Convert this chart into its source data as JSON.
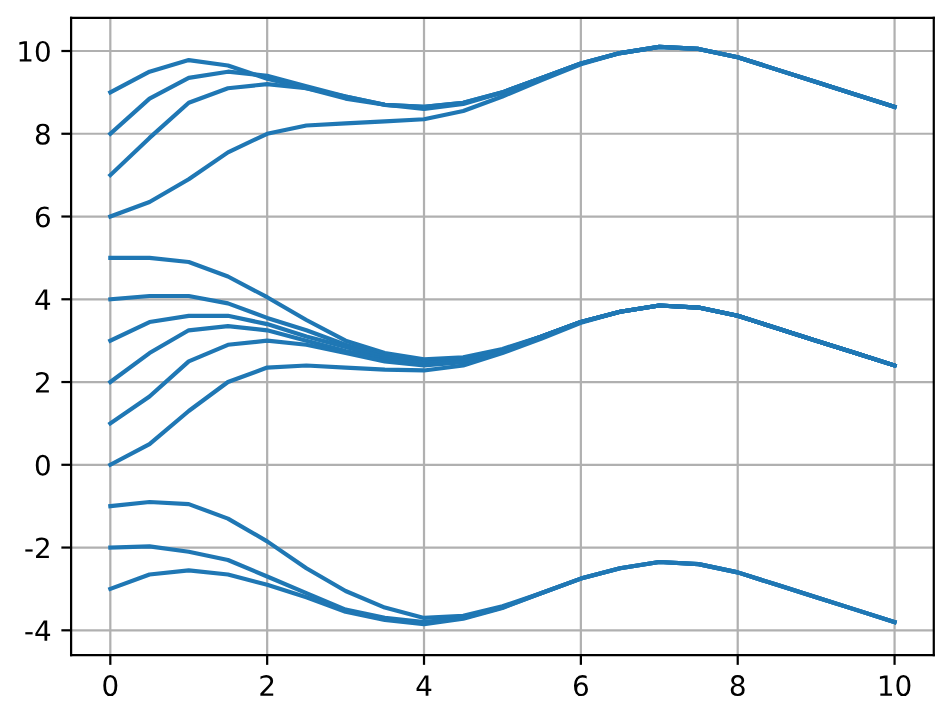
{
  "chart_data": {
    "type": "line",
    "x": [
      0,
      0.5,
      1,
      1.5,
      2,
      2.5,
      3,
      3.5,
      4,
      4.5,
      5,
      5.5,
      6,
      6.5,
      7,
      7.5,
      8,
      8.5,
      9,
      9.5,
      10
    ],
    "series": [
      {
        "color": "#1f77b4",
        "values": [
          9,
          9.5,
          9.78,
          9.65,
          9.33,
          9.1,
          8.85,
          8.7,
          8.65,
          8.75,
          9.0,
          9.35,
          9.7,
          9.95,
          10.1,
          10.05,
          9.85,
          9.55,
          9.25,
          8.95,
          8.65
        ]
      },
      {
        "color": "#1f77b4",
        "values": [
          8,
          8.85,
          9.35,
          9.5,
          9.4,
          9.15,
          8.9,
          8.7,
          8.65,
          8.75,
          9.0,
          9.35,
          9.7,
          9.95,
          10.1,
          10.05,
          9.85,
          9.55,
          9.25,
          8.95,
          8.65
        ]
      },
      {
        "color": "#1f77b4",
        "values": [
          7,
          7.9,
          8.75,
          9.1,
          9.2,
          9.1,
          8.9,
          8.7,
          8.6,
          8.72,
          9.0,
          9.35,
          9.7,
          9.95,
          10.1,
          10.05,
          9.85,
          9.55,
          9.25,
          8.95,
          8.65
        ]
      },
      {
        "color": "#1f77b4",
        "values": [
          6,
          6.35,
          6.9,
          7.55,
          8.0,
          8.2,
          8.25,
          8.3,
          8.35,
          8.55,
          8.9,
          9.3,
          9.68,
          9.95,
          10.1,
          10.05,
          9.85,
          9.55,
          9.25,
          8.95,
          8.65
        ]
      },
      {
        "color": "#1f77b4",
        "values": [
          5,
          5,
          4.9,
          4.55,
          4.05,
          3.5,
          3.0,
          2.7,
          2.55,
          2.6,
          2.8,
          3.1,
          3.45,
          3.7,
          3.85,
          3.8,
          3.6,
          3.3,
          3.0,
          2.7,
          2.4
        ]
      },
      {
        "color": "#1f77b4",
        "values": [
          4,
          4.08,
          4.08,
          3.9,
          3.55,
          3.25,
          2.9,
          2.65,
          2.5,
          2.55,
          2.78,
          3.1,
          3.45,
          3.7,
          3.85,
          3.8,
          3.6,
          3.3,
          3.0,
          2.7,
          2.4
        ]
      },
      {
        "color": "#1f77b4",
        "values": [
          3,
          3.45,
          3.6,
          3.6,
          3.4,
          3.1,
          2.85,
          2.6,
          2.45,
          2.52,
          2.76,
          3.1,
          3.45,
          3.7,
          3.85,
          3.8,
          3.6,
          3.3,
          3.0,
          2.7,
          2.4
        ]
      },
      {
        "color": "#1f77b4",
        "values": [
          2,
          2.7,
          3.25,
          3.35,
          3.25,
          3.0,
          2.75,
          2.55,
          2.45,
          2.5,
          2.75,
          3.1,
          3.45,
          3.7,
          3.85,
          3.8,
          3.6,
          3.3,
          3.0,
          2.7,
          2.4
        ]
      },
      {
        "color": "#1f77b4",
        "values": [
          1,
          1.65,
          2.5,
          2.9,
          3.0,
          2.9,
          2.7,
          2.5,
          2.4,
          2.48,
          2.74,
          3.1,
          3.45,
          3.7,
          3.85,
          3.8,
          3.6,
          3.3,
          3.0,
          2.7,
          2.4
        ]
      },
      {
        "color": "#1f77b4",
        "values": [
          0,
          0.5,
          1.3,
          2.0,
          2.35,
          2.4,
          2.35,
          2.3,
          2.28,
          2.4,
          2.7,
          3.05,
          3.43,
          3.7,
          3.85,
          3.8,
          3.6,
          3.3,
          3.0,
          2.7,
          2.4
        ]
      },
      {
        "color": "#1f77b4",
        "values": [
          -1,
          -0.9,
          -0.95,
          -1.3,
          -1.85,
          -2.5,
          -3.05,
          -3.45,
          -3.7,
          -3.65,
          -3.42,
          -3.1,
          -2.75,
          -2.5,
          -2.35,
          -2.4,
          -2.6,
          -2.9,
          -3.2,
          -3.5,
          -3.8
        ]
      },
      {
        "color": "#1f77b4",
        "values": [
          -2,
          -1.97,
          -2.1,
          -2.3,
          -2.7,
          -3.1,
          -3.5,
          -3.7,
          -3.8,
          -3.7,
          -3.45,
          -3.1,
          -2.75,
          -2.5,
          -2.35,
          -2.4,
          -2.6,
          -2.9,
          -3.2,
          -3.5,
          -3.8
        ]
      },
      {
        "color": "#1f77b4",
        "values": [
          -3,
          -2.65,
          -2.55,
          -2.65,
          -2.9,
          -3.2,
          -3.55,
          -3.75,
          -3.85,
          -3.72,
          -3.46,
          -3.1,
          -2.75,
          -2.5,
          -2.35,
          -2.4,
          -2.6,
          -2.9,
          -3.2,
          -3.5,
          -3.8
        ]
      }
    ],
    "xlim": [
      -0.5,
      10.5
    ],
    "ylim": [
      -4.6,
      10.8
    ],
    "xticks": [
      0,
      2,
      4,
      6,
      8,
      10
    ],
    "yticks": [
      -4,
      -2,
      0,
      2,
      4,
      6,
      8,
      10
    ],
    "grid": true,
    "marker": "none",
    "line_style": "solid"
  }
}
